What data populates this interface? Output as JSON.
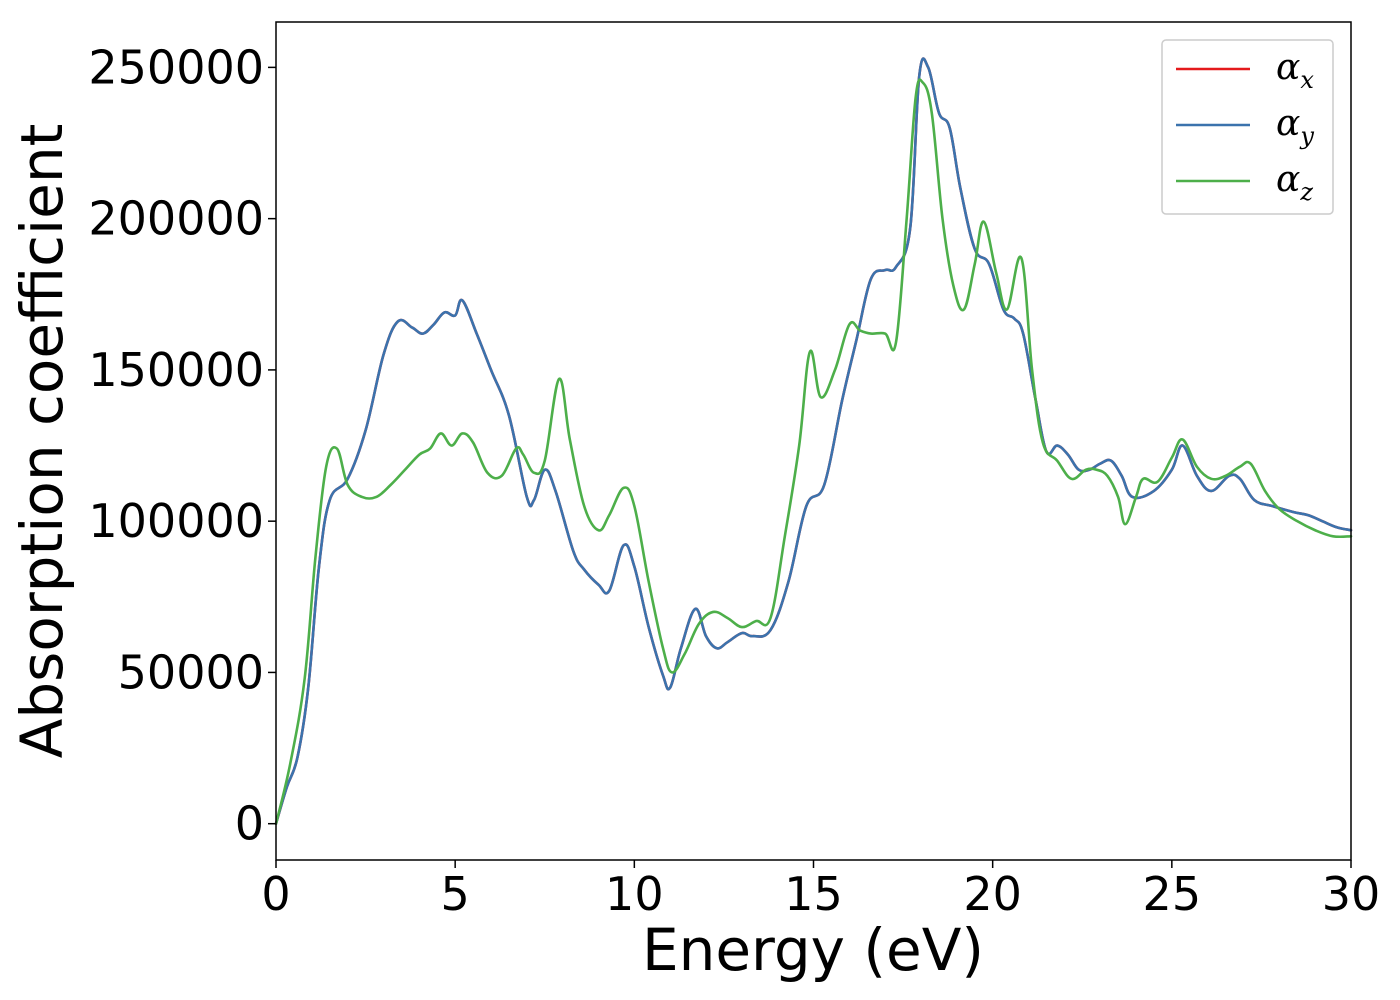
{
  "chart_data": {
    "type": "line",
    "title": "",
    "xlabel": "Energy (eV)",
    "ylabel": "Absorption coefficient",
    "xlim": [
      0,
      30
    ],
    "ylim": [
      -12000,
      265000
    ],
    "xticks": [
      0,
      5,
      10,
      15,
      20,
      25,
      30
    ],
    "xtick_labels": [
      "0",
      "5",
      "10",
      "15",
      "20",
      "25",
      "30"
    ],
    "yticks": [
      0,
      50000,
      100000,
      150000,
      200000,
      250000
    ],
    "ytick_labels": [
      "0",
      "50000",
      "100000",
      "150000",
      "200000",
      "250000"
    ],
    "grid": false,
    "legend_position": "top-right",
    "series": [
      {
        "name": "αx",
        "symbol": "α",
        "subscript": "x",
        "color": "#e41a1c",
        "x": [
          0,
          0.3,
          0.6,
          0.9,
          1.2,
          1.5,
          2.0,
          2.5,
          3.0,
          3.4,
          3.8,
          4.1,
          4.4,
          4.7,
          5.0,
          5.2,
          5.6,
          6.0,
          6.5,
          7.0,
          7.2,
          7.5,
          7.8,
          8.3,
          8.6,
          9.0,
          9.3,
          9.7,
          10.0,
          10.4,
          10.8,
          11.0,
          11.3,
          11.7,
          12.0,
          12.3,
          12.6,
          13.0,
          13.3,
          13.8,
          14.3,
          14.8,
          15.3,
          15.8,
          16.2,
          16.6,
          17.0,
          17.3,
          17.7,
          17.95,
          18.2,
          18.5,
          18.8,
          19.1,
          19.5,
          19.9,
          20.3,
          20.6,
          20.85,
          21.2,
          21.5,
          21.8,
          22.1,
          22.4,
          22.7,
          23.0,
          23.3,
          23.6,
          23.9,
          24.5,
          25.0,
          25.3,
          25.7,
          26.1,
          26.6,
          26.9,
          27.3,
          27.8,
          28.4,
          28.8,
          29.2,
          29.6,
          30.0
        ],
        "y": [
          0,
          12000,
          22000,
          45000,
          85000,
          107000,
          114000,
          130000,
          155000,
          166000,
          164000,
          162000,
          165000,
          169000,
          168000,
          173000,
          162000,
          150000,
          135000,
          108000,
          107000,
          117000,
          110000,
          90000,
          84000,
          79000,
          77000,
          92000,
          85000,
          65000,
          49000,
          45000,
          58000,
          71000,
          62000,
          58000,
          60000,
          63000,
          62000,
          64000,
          80000,
          105000,
          112000,
          140000,
          160000,
          180000,
          183000,
          184000,
          197000,
          247000,
          250000,
          235000,
          230000,
          210000,
          190000,
          185000,
          170000,
          167000,
          162000,
          140000,
          123000,
          125000,
          122000,
          117000,
          117000,
          119000,
          120000,
          115000,
          108000,
          110000,
          117000,
          125000,
          115000,
          110000,
          115000,
          114000,
          107000,
          105000,
          103000,
          102000,
          100000,
          98000,
          97000
        ]
      },
      {
        "name": "αy",
        "symbol": "α",
        "subscript": "y",
        "color": "#3b73ad",
        "x": [
          0,
          0.3,
          0.6,
          0.9,
          1.2,
          1.5,
          2.0,
          2.5,
          3.0,
          3.4,
          3.8,
          4.1,
          4.4,
          4.7,
          5.0,
          5.2,
          5.6,
          6.0,
          6.5,
          7.0,
          7.2,
          7.5,
          7.8,
          8.3,
          8.6,
          9.0,
          9.3,
          9.7,
          10.0,
          10.4,
          10.8,
          11.0,
          11.3,
          11.7,
          12.0,
          12.3,
          12.6,
          13.0,
          13.3,
          13.8,
          14.3,
          14.8,
          15.3,
          15.8,
          16.2,
          16.6,
          17.0,
          17.3,
          17.7,
          17.95,
          18.2,
          18.5,
          18.8,
          19.1,
          19.5,
          19.9,
          20.3,
          20.6,
          20.85,
          21.2,
          21.5,
          21.8,
          22.1,
          22.4,
          22.7,
          23.0,
          23.3,
          23.6,
          23.9,
          24.5,
          25.0,
          25.3,
          25.7,
          26.1,
          26.6,
          26.9,
          27.3,
          27.8,
          28.4,
          28.8,
          29.2,
          29.6,
          30.0
        ],
        "y": [
          0,
          12000,
          22000,
          45000,
          85000,
          107000,
          114000,
          130000,
          155000,
          166000,
          164000,
          162000,
          165000,
          169000,
          168000,
          173000,
          162000,
          150000,
          135000,
          108000,
          107000,
          117000,
          110000,
          90000,
          84000,
          79000,
          77000,
          92000,
          85000,
          65000,
          49000,
          45000,
          58000,
          71000,
          62000,
          58000,
          60000,
          63000,
          62000,
          64000,
          80000,
          105000,
          112000,
          140000,
          160000,
          180000,
          183000,
          184000,
          197000,
          247000,
          250000,
          235000,
          230000,
          210000,
          190000,
          185000,
          170000,
          167000,
          162000,
          140000,
          123000,
          125000,
          122000,
          117000,
          117000,
          119000,
          120000,
          115000,
          108000,
          110000,
          117000,
          125000,
          115000,
          110000,
          115000,
          114000,
          107000,
          105000,
          103000,
          102000,
          100000,
          98000,
          97000
        ]
      },
      {
        "name": "αz",
        "symbol": "α",
        "subscript": "z",
        "color": "#4daf4a",
        "x": [
          0,
          0.4,
          0.8,
          1.1,
          1.4,
          1.7,
          2.0,
          2.4,
          2.8,
          3.2,
          3.6,
          4.0,
          4.3,
          4.6,
          4.9,
          5.2,
          5.5,
          5.9,
          6.3,
          6.7,
          6.9,
          7.2,
          7.5,
          7.9,
          8.2,
          8.6,
          9.0,
          9.3,
          9.7,
          10.0,
          10.4,
          10.8,
          11.05,
          11.4,
          11.8,
          12.2,
          12.6,
          13.0,
          13.4,
          13.8,
          14.2,
          14.6,
          14.9,
          15.2,
          15.6,
          16.0,
          16.3,
          16.6,
          17.0,
          17.3,
          17.6,
          17.85,
          18.05,
          18.3,
          18.6,
          18.9,
          19.2,
          19.5,
          19.75,
          20.1,
          20.4,
          20.8,
          21.1,
          21.4,
          21.8,
          22.2,
          22.6,
          22.9,
          23.2,
          23.5,
          23.7,
          24.0,
          24.2,
          24.6,
          25.0,
          25.3,
          25.7,
          26.1,
          26.5,
          26.9,
          27.2,
          27.6,
          28.0,
          28.5,
          29.0,
          29.5,
          30.0
        ],
        "y": [
          0,
          20000,
          48000,
          88000,
          118000,
          124000,
          112000,
          108000,
          108000,
          112000,
          117000,
          122000,
          124000,
          129000,
          125000,
          129000,
          126000,
          116000,
          115000,
          124000,
          122000,
          116000,
          120000,
          147000,
          127000,
          105000,
          97000,
          102000,
          111000,
          105000,
          80000,
          58000,
          50000,
          56000,
          66000,
          70000,
          68000,
          65000,
          67000,
          68000,
          95000,
          125000,
          156000,
          141000,
          150000,
          165000,
          163000,
          162000,
          162000,
          159000,
          200000,
          240000,
          245000,
          235000,
          200000,
          178000,
          170000,
          185000,
          199000,
          182000,
          170000,
          187000,
          150000,
          126000,
          120000,
          114000,
          117000,
          117000,
          115000,
          108000,
          99000,
          108000,
          114000,
          113000,
          121000,
          127000,
          118000,
          114000,
          115000,
          118000,
          119000,
          110000,
          104000,
          100000,
          97000,
          95000,
          95000
        ]
      }
    ]
  }
}
